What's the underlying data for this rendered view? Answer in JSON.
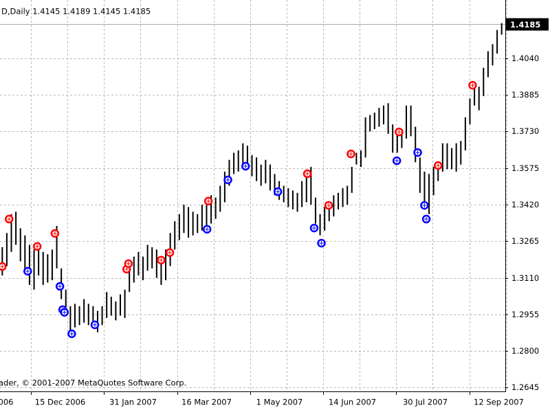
{
  "chart_data": {
    "type": "price_bars",
    "title": "D,Daily  1.4145 1.4189 1.4145 1.4185",
    "footer": "ader, © 2001-2007 MetaQuotes Software Corp.",
    "current_price": 1.4185,
    "xlim": [
      -0.5,
      110.5
    ],
    "xticks": [
      {
        "value": -5.6,
        "label": "006"
      },
      {
        "value": 6.3,
        "label": "15 Dec 2006"
      },
      {
        "value": 22.4,
        "label": "31 Jan 2007"
      },
      {
        "value": 38.5,
        "label": "16 Mar 2007"
      },
      {
        "value": 54.6,
        "label": "1 May 2007"
      },
      {
        "value": 70.7,
        "label": "14 Jun 2007"
      },
      {
        "value": 86.8,
        "label": "30 Jul 2007"
      },
      {
        "value": 102.9,
        "label": "12 Sep 2007"
      }
    ],
    "ylim": [
      1.2629,
      1.4287
    ],
    "yticks": [
      {
        "value": 1.404,
        "label": "1.4040"
      },
      1.3885,
      {
        "value": 1.373,
        "label": "1.3730"
      },
      1.3575,
      {
        "value": 1.342,
        "label": "1.3420"
      },
      1.3265,
      {
        "value": 1.311,
        "label": "1.3110"
      },
      1.2955,
      {
        "value": 1.28,
        "label": "1.2800"
      },
      1.2645
    ],
    "grid": true,
    "bar_color": "#000000",
    "high": [
      1.324,
      1.33,
      1.338,
      1.339,
      1.332,
      1.329,
      1.325,
      1.323,
      1.326,
      1.322,
      1.321,
      1.323,
      1.333,
      1.315,
      1.306,
      1.299,
      1.3,
      1.299,
      1.302,
      1.3,
      1.299,
      1.297,
      1.299,
      1.305,
      1.303,
      1.301,
      1.304,
      1.306,
      1.317,
      1.32,
      1.322,
      1.32,
      1.325,
      1.324,
      1.323,
      1.319,
      1.323,
      1.33,
      1.335,
      1.338,
      1.342,
      1.341,
      1.339,
      1.338,
      1.342,
      1.344,
      1.346,
      1.345,
      1.35,
      1.356,
      1.361,
      1.364,
      1.365,
      1.368,
      1.367,
      1.363,
      1.362,
      1.359,
      1.361,
      1.359,
      1.355,
      1.352,
      1.35,
      1.349,
      1.348,
      1.347,
      1.352,
      1.354,
      1.358,
      1.345,
      1.338,
      1.341,
      1.343,
      1.346,
      1.347,
      1.349,
      1.35,
      1.358,
      1.364,
      1.365,
      1.379,
      1.38,
      1.381,
      1.383,
      1.384,
      1.385,
      1.376,
      1.373,
      1.374,
      1.384,
      1.384,
      1.375,
      1.362,
      1.356,
      1.355,
      1.358,
      1.36,
      1.368,
      1.368,
      1.366,
      1.368,
      1.369,
      1.379,
      1.387,
      1.392,
      1.392,
      1.4,
      1.407,
      1.41,
      1.416,
      1.4189
    ],
    "low": [
      1.312,
      1.316,
      1.322,
      1.325,
      1.318,
      1.313,
      1.308,
      1.306,
      1.312,
      1.308,
      1.309,
      1.31,
      1.315,
      1.302,
      1.296,
      1.288,
      1.29,
      1.291,
      1.292,
      1.291,
      1.29,
      1.288,
      1.291,
      1.294,
      1.295,
      1.293,
      1.295,
      1.294,
      1.305,
      1.309,
      1.312,
      1.31,
      1.314,
      1.315,
      1.311,
      1.308,
      1.31,
      1.316,
      1.323,
      1.327,
      1.33,
      1.328,
      1.329,
      1.33,
      1.331,
      1.333,
      1.334,
      1.336,
      1.339,
      1.343,
      1.35,
      1.355,
      1.356,
      1.358,
      1.357,
      1.354,
      1.352,
      1.35,
      1.351,
      1.348,
      1.346,
      1.344,
      1.343,
      1.341,
      1.34,
      1.339,
      1.341,
      1.343,
      1.342,
      1.334,
      1.329,
      1.331,
      1.335,
      1.337,
      1.34,
      1.341,
      1.342,
      1.347,
      1.359,
      1.358,
      1.362,
      1.373,
      1.374,
      1.375,
      1.376,
      1.372,
      1.364,
      1.364,
      1.366,
      1.37,
      1.371,
      1.36,
      1.347,
      1.34,
      1.338,
      1.346,
      1.352,
      1.356,
      1.357,
      1.357,
      1.356,
      1.359,
      1.365,
      1.376,
      1.384,
      1.382,
      1.388,
      1.396,
      1.401,
      1.406,
      1.414
    ],
    "series": [
      {
        "color": "#ff0000",
        "x": [
          0,
          1.5,
          7.7,
          11.6,
          27.4,
          27.8,
          35,
          36.9,
          45.4,
          67.2,
          71.9,
          76.8,
          87.4,
          96,
          103.6
        ],
        "values": [
          1.3158,
          1.3359,
          1.3243,
          1.3298,
          1.3147,
          1.317,
          1.3185,
          1.3217,
          1.3435,
          1.3551,
          1.3417,
          1.3635,
          1.3728,
          1.3586,
          1.3926
        ]
      },
      {
        "color": "#0000ff",
        "x": [
          5.6,
          12.7,
          13.3,
          13.7,
          15.3,
          20.4,
          45.1,
          49.7,
          53.6,
          60.7,
          68.7,
          70.3,
          86.9,
          91.5,
          93,
          93.4
        ],
        "values": [
          1.3138,
          1.3074,
          1.2975,
          1.2964,
          1.2873,
          1.2911,
          1.3316,
          1.3525,
          1.3583,
          1.3475,
          1.3321,
          1.3257,
          1.3606,
          1.3641,
          1.3417,
          1.3359
        ]
      }
    ]
  }
}
